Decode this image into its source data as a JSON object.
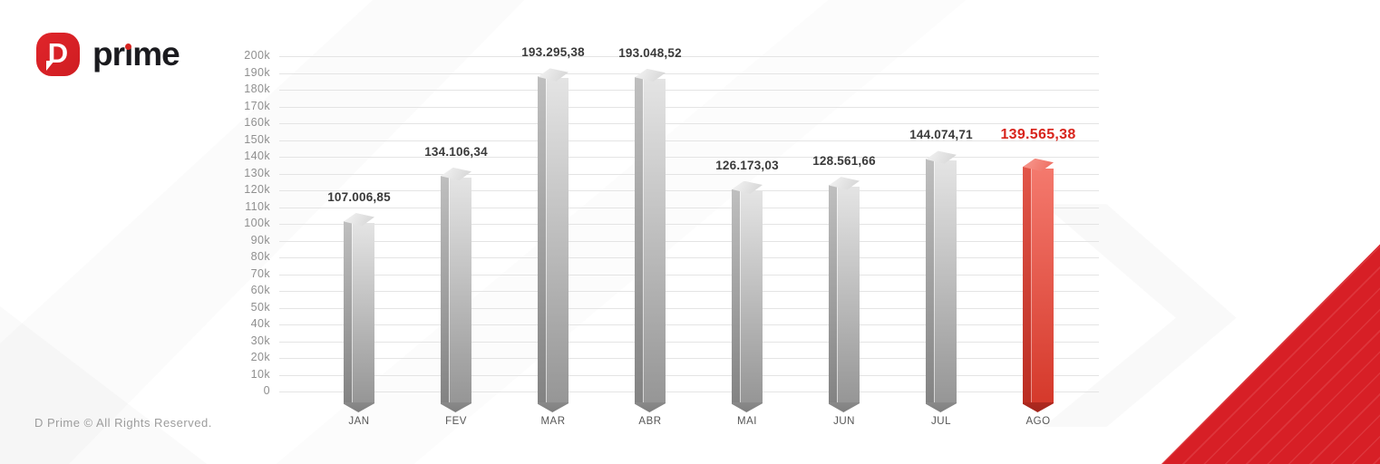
{
  "logo": {
    "brand": "prime",
    "brand_pre": "pr",
    "brand_i": "ı",
    "brand_post": "me",
    "mark_letter": "D"
  },
  "footer": {
    "copyright": "D Prime © All Rights Reserved."
  },
  "colors": {
    "accent_red": "#d7231f",
    "highlight_label": "#d8251d",
    "bar_gray_top": "#e4e4e4",
    "bar_gray_bottom": "#969696",
    "grid_line": "#e4e4e4",
    "axis_text": "#8f8f8f",
    "value_text": "#3a3a3a"
  },
  "chart_data": {
    "type": "bar",
    "categories": [
      "JAN",
      "FEV",
      "MAR",
      "ABR",
      "MAI",
      "JUN",
      "JUL",
      "AGO"
    ],
    "values": [
      107006.85,
      134106.34,
      193295.38,
      193048.52,
      126173.03,
      128561.66,
      144074.71,
      139565.38
    ],
    "value_labels": [
      "107.006,85",
      "134.106,34",
      "193.295,38",
      "193.048,52",
      "126.173,03",
      "128.561,66",
      "144.074,71",
      "139.565,38"
    ],
    "highlight_index": 7,
    "highlight_color": "#d8251d",
    "title": "",
    "xlabel": "",
    "ylabel": "",
    "ylim": [
      0,
      200000
    ],
    "y_tick_step": 10000,
    "y_tick_labels": [
      "200k",
      "190k",
      "180k",
      "170k",
      "160k",
      "150k",
      "140k",
      "130k",
      "120k",
      "110k",
      "100k",
      "90k",
      "80k",
      "70k",
      "60k",
      "50k",
      "40k",
      "30k",
      "20k",
      "10k",
      "0"
    ],
    "grid": true,
    "legend": false,
    "bar_style": "3d-column",
    "bar_color": "gray",
    "highlight_bar_color": "red"
  }
}
